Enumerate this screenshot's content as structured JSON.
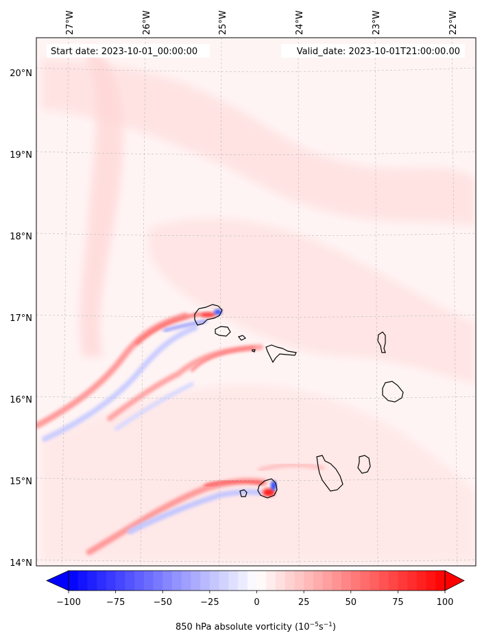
{
  "map": {
    "start_label": "Start date: 2023-10-01_00:00:00",
    "valid_label": "Valid_date: 2023-10-01T21:00:00.00",
    "lon_labels": [
      "27°W",
      "26°W",
      "25°W",
      "24°W",
      "23°W",
      "22°W"
    ],
    "lat_labels": [
      "20°N",
      "19°N",
      "18°N",
      "17°N",
      "16°N",
      "15°N",
      "14°N"
    ],
    "lon_values": [
      -27,
      -26,
      -25,
      -24,
      -23,
      -22
    ],
    "lat_values": [
      20,
      19,
      18,
      17,
      16,
      15,
      14
    ],
    "extent": {
      "lon_min": -27.4,
      "lon_max": -21.7,
      "lat_min": 13.95,
      "lat_max": 20.45
    },
    "gridlines": true,
    "colormap": "bwr",
    "colors": {
      "negative": "#0000ff",
      "zero": "#ffffff",
      "positive": "#ff0000",
      "coastline": "#000000",
      "gridline": "#b0b0b0"
    }
  },
  "colorbar": {
    "ticks": [
      "−100",
      "−75",
      "−50",
      "−25",
      "0",
      "25",
      "50",
      "75",
      "100"
    ],
    "tick_values": [
      -100,
      -75,
      -50,
      -25,
      0,
      25,
      50,
      75,
      100
    ],
    "range": [
      -100,
      100
    ],
    "levels": 40,
    "extend": "both",
    "label_main": "850 hPa absolute vorticity (10",
    "label_exp1": "−5",
    "label_mid": "s",
    "label_exp2": "−1",
    "label_end": ")"
  }
}
